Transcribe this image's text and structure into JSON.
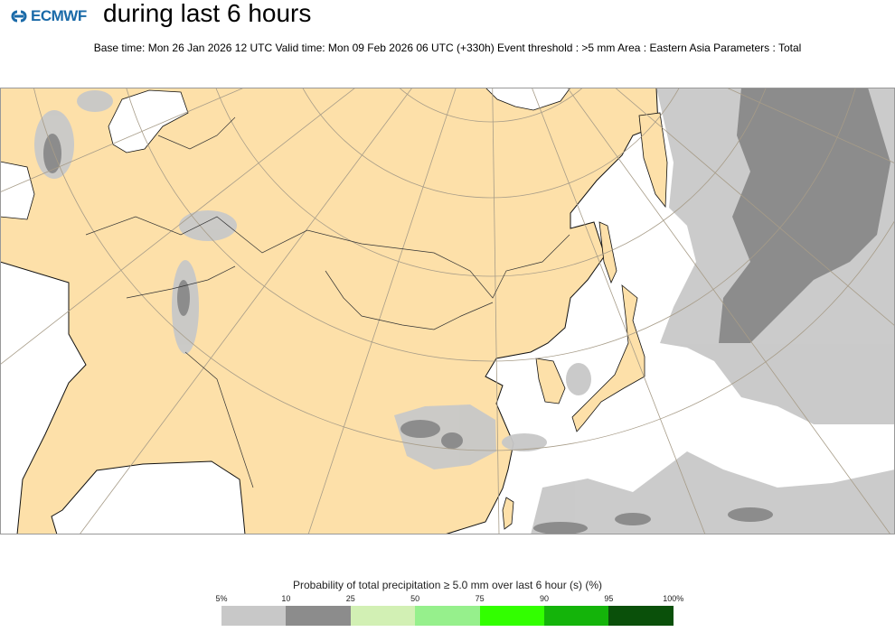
{
  "header": {
    "logo": "ECMWF",
    "title": "during last 6 hours",
    "subtitle": "Base time: Mon 26 Jan 2026 12 UTC Valid time: Mon 09 Feb 2026 06 UTC (+330h) Event threshold : >5 mm Area : Eastern Asia Parameters : Total"
  },
  "map": {
    "land_color": "#fde0a9",
    "sea_color": "#ffffff"
  },
  "legend": {
    "title": "Probability of total precipitation ≥ 5.0 mm over last 6 hour (s) (%)",
    "ticks": [
      "5%",
      "10",
      "25",
      "50",
      "75",
      "90",
      "95",
      "100%"
    ],
    "colors": [
      "#c8c8c8",
      "#8c8c8c",
      "#d2f0b4",
      "#96f08c",
      "#32ff00",
      "#14b40a",
      "#0a500a"
    ]
  }
}
